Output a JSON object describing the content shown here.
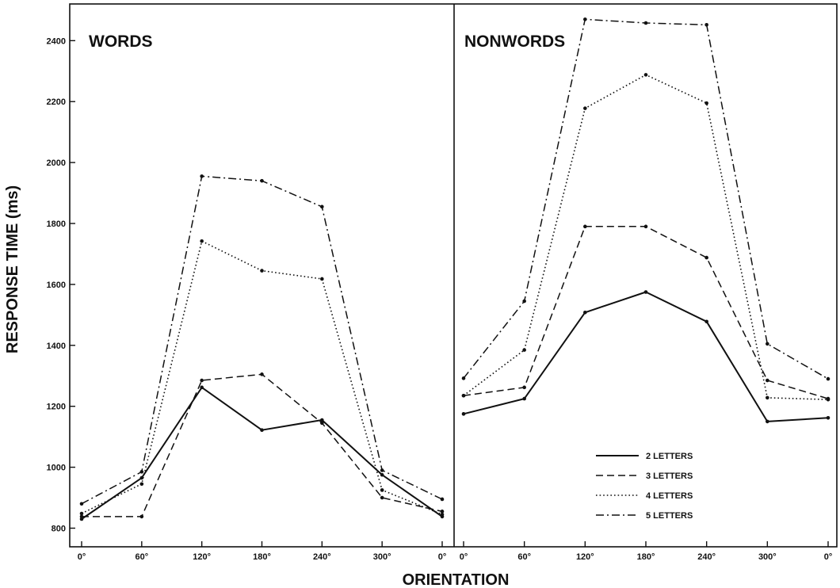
{
  "chart_data": {
    "type": "line",
    "ylabel": "RESPONSE  TIME  (ms)",
    "xlabel": "ORIENTATION",
    "ylim": [
      760,
      2500
    ],
    "yticks": [
      800,
      1000,
      1200,
      1400,
      1600,
      1800,
      2000,
      2200,
      2400
    ],
    "categories": [
      "0°",
      "60°",
      "120°",
      "180°",
      "240°",
      "300°",
      "0°"
    ],
    "legend": {
      "placement": "lower-right of right panel",
      "entries": [
        "2  LETTERS",
        "3  LETTERS",
        "4  LETTERS",
        "5  LETTERS"
      ]
    },
    "grid": false,
    "panels": [
      {
        "title": "WORDS",
        "series": [
          {
            "name": "2  LETTERS",
            "dash": "solid",
            "values": [
              830,
              965,
              1262,
              1122,
              1155,
              975,
              838
            ]
          },
          {
            "name": "3  LETTERS",
            "dash": "dashed",
            "values": [
              838,
              838,
              1285,
              1305,
              1145,
              900,
              855
            ]
          },
          {
            "name": "4  LETTERS",
            "dash": "dotted",
            "values": [
              848,
              945,
              1742,
              1645,
              1618,
              925,
              845
            ]
          },
          {
            "name": "5  LETTERS",
            "dash": "dashdot",
            "values": [
              880,
              985,
              1955,
              1940,
              1855,
              990,
              895
            ]
          }
        ]
      },
      {
        "title": "NONWORDS",
        "series": [
          {
            "name": "2  LETTERS",
            "dash": "solid",
            "values": [
              1175,
              1225,
              1508,
              1575,
              1478,
              1150,
              1162
            ]
          },
          {
            "name": "3  LETTERS",
            "dash": "dashed",
            "values": [
              1235,
              1262,
              1790,
              1790,
              1688,
              1285,
              1225
            ]
          },
          {
            "name": "4  LETTERS",
            "dash": "dotted",
            "values": [
              1235,
              1385,
              2178,
              2288,
              2195,
              1228,
              1222
            ]
          },
          {
            "name": "5  LETTERS",
            "dash": "dashdot",
            "values": [
              1292,
              1545,
              2470,
              2458,
              2452,
              1405,
              1290
            ]
          }
        ]
      }
    ]
  }
}
